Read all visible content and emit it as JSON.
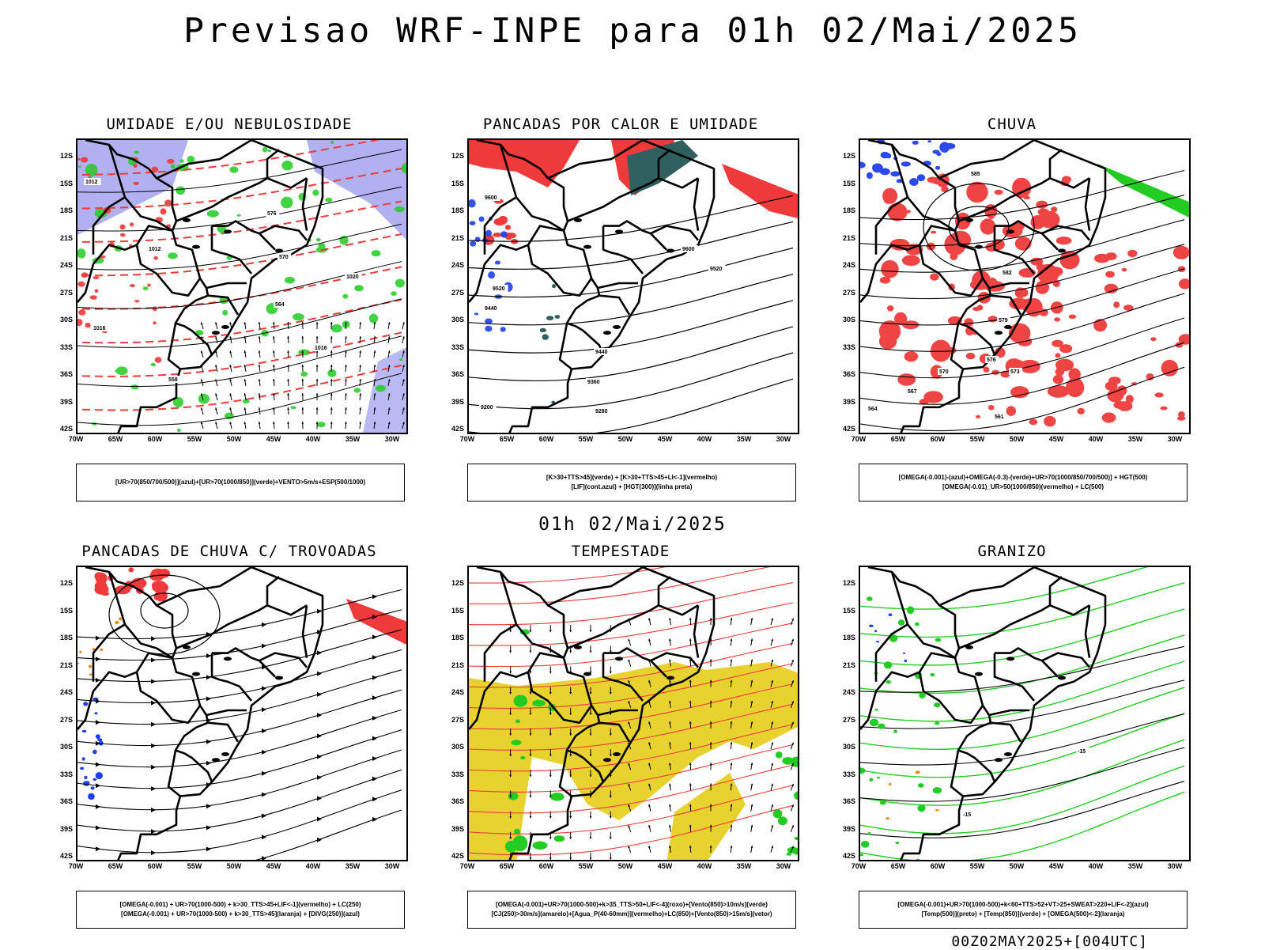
{
  "title": "Previsao WRF-INPE  para 01h 02/Mai/2025",
  "middle_title": "01h 02/Mai/2025",
  "footer": "00Z02MAY2025+[004UTC]",
  "latitudes": [
    "12S",
    "15S",
    "18S",
    "21S",
    "24S",
    "27S",
    "30S",
    "33S",
    "36S",
    "39S",
    "42S"
  ],
  "longitudes": [
    "70W",
    "65W",
    "60W",
    "55W",
    "50W",
    "45W",
    "40W",
    "35W",
    "30W"
  ],
  "colors": {
    "blue_fill": "#a8a8f0",
    "green": "#22cc22",
    "red": "#ee3a3a",
    "dark_teal": "#2f5f5f",
    "yellow": "#e8d230",
    "orange": "#ee8a22",
    "blue": "#2040ee"
  },
  "panels": [
    {
      "title": "UMIDADE E/OU NEBULOSIDADE",
      "legend": [
        "[UR>70(850/700/500)](azul)+[UR>70(1000/850)](verde)+VENTO>5m/s+ESP(500/1000)"
      ],
      "contour_labels": [
        "1012",
        "1016",
        "1020",
        "1016",
        "1012",
        "570",
        "564",
        "558",
        "576"
      ]
    },
    {
      "title": "PANCADAS POR CALOR E UMIDADE",
      "legend": [
        "[K>30+TTS>45](verde) + [K>30+TTS>45+LI<-1](vermelho)",
        "[LIF](cont.azul) + [HGT(300)](linha preta)"
      ],
      "contour_labels": [
        "9600",
        "9600",
        "9520",
        "9520",
        "9440",
        "9440",
        "9360",
        "9280",
        "9200"
      ]
    },
    {
      "title": "CHUVA",
      "legend": [
        "[OMEGA(-0.001)-(azul)+OMEGA(-0.3)-(verde)+UR>70(1000/850/700/500)] + HGT(500)",
        "[OMEGA(-0.01)_UR>50(1000/850)(vermelho) + LC(500)"
      ],
      "contour_labels": [
        "585",
        "582",
        "579",
        "576",
        "573",
        "570",
        "567",
        "564",
        "561"
      ]
    },
    {
      "title": "PANCADAS DE CHUVA C/ TROVOADAS",
      "legend": [
        "[OMEGA(-0.001) + UR>70(1000-500) + k>30_TTS>45+LIF<-1](vermelho) + LC(250)",
        "[OMEGA(-0.001) + UR>70(1000-500) + k>30_TTS>45](laranja) + [DIVG(250)](azul)"
      ],
      "contour_labels": []
    },
    {
      "title": "TEMPESTADE",
      "legend": [
        "[OMEGA(-0.001)+UR>70(1000-500)+k>35_TTS>50+LIF<-4](roxo)+[Vento(850)>10m/s](verde)",
        "[CJ(250)>30m/s](amarelo)+[Agua_P(40-60mm)](vermelho)+LC(850)+[Vento(850)>15m/s](vetor)"
      ],
      "contour_labels": []
    },
    {
      "title": "GRANIZO",
      "legend": [
        "[OMEGA(-0.001)+UR>70(1000-500)+k<60+TTS>52+VT>25+SWEAT>220+LIF<-2](azul)",
        "[Temp(500)](preto) + [Temp(850)](verde) + [OMEGA(500)<-2](laranja)"
      ],
      "contour_labels": [
        "-15",
        "-15"
      ]
    }
  ]
}
